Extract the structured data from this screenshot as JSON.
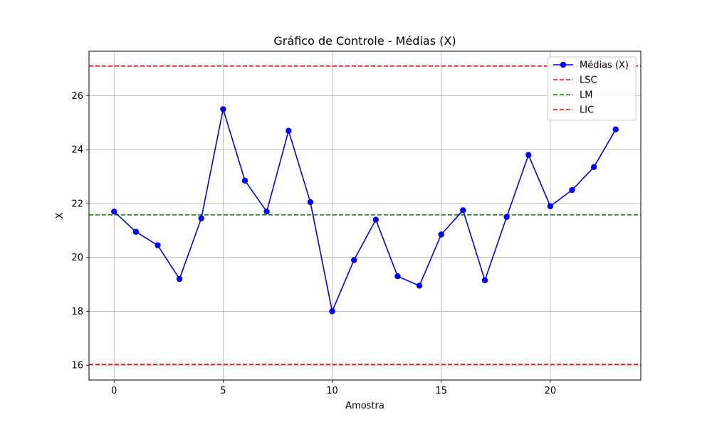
{
  "chart_data": {
    "type": "line",
    "title": "Gráfico de Controle - Médias (X)",
    "xlabel": "Amostra",
    "ylabel": "X",
    "xlim": [
      -1.15,
      24.15
    ],
    "ylim": [
      15.45,
      27.65
    ],
    "xticks": [
      0,
      5,
      10,
      15,
      20
    ],
    "yticks": [
      16,
      18,
      20,
      22,
      24,
      26
    ],
    "grid": true,
    "legend_position": "top-right",
    "x": [
      0,
      1,
      2,
      3,
      4,
      5,
      6,
      7,
      8,
      9,
      10,
      11,
      12,
      13,
      14,
      15,
      16,
      17,
      18,
      19,
      20,
      21,
      22,
      23
    ],
    "series": [
      {
        "name": "Médias (X)",
        "color": "#0000ff",
        "marker": "circle",
        "values": [
          21.7,
          20.95,
          20.45,
          19.2,
          21.45,
          25.5,
          22.85,
          21.7,
          24.7,
          22.05,
          18.0,
          19.9,
          21.4,
          19.3,
          18.95,
          20.85,
          21.75,
          19.15,
          21.5,
          23.8,
          21.9,
          22.5,
          23.35,
          24.75
        ]
      }
    ],
    "reference_lines": [
      {
        "name": "LSC",
        "value": 27.1,
        "color": "#ff0000",
        "style": "dashed"
      },
      {
        "name": "LM",
        "value": 21.58,
        "color": "#008000",
        "style": "dashed"
      },
      {
        "name": "LIC",
        "value": 16.03,
        "color": "#ff0000",
        "style": "dashed"
      }
    ]
  }
}
